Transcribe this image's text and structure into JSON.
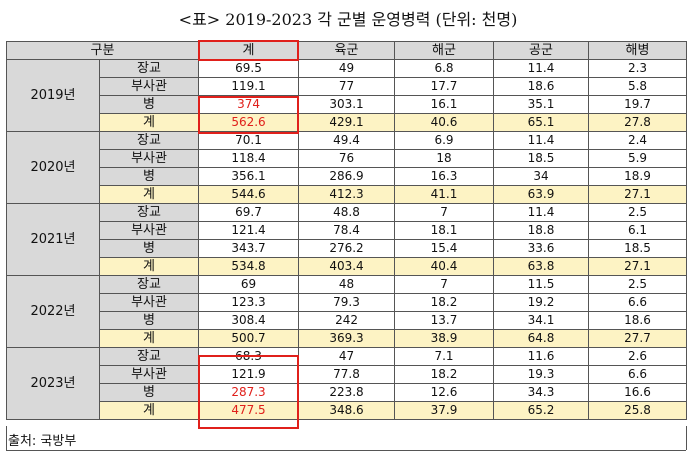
{
  "title": "<표> 2019-2023 각 군별 운영병력 (단위: 천명)",
  "headers": [
    "구분",
    "계",
    "육군",
    "해군",
    "공군",
    "해병"
  ],
  "groups": [
    {
      "year": "2019년",
      "rows": [
        {
          "rank": "장교",
          "values": [
            "69.5",
            "49",
            "6.8",
            "11.4",
            "2.3"
          ]
        },
        {
          "rank": "부사관",
          "values": [
            "119.1",
            "77",
            "17.7",
            "18.6",
            "5.8"
          ]
        },
        {
          "rank": "병",
          "values": [
            "374",
            "303.1",
            "16.1",
            "35.1",
            "19.7"
          ]
        },
        {
          "rank": "계",
          "values": [
            "562.6",
            "429.1",
            "40.6",
            "65.1",
            "27.8"
          ]
        }
      ]
    },
    {
      "year": "2020년",
      "rows": [
        {
          "rank": "장교",
          "values": [
            "70.1",
            "49.4",
            "6.9",
            "11.4",
            "2.4"
          ]
        },
        {
          "rank": "부사관",
          "values": [
            "118.4",
            "76",
            "18",
            "18.5",
            "5.9"
          ]
        },
        {
          "rank": "병",
          "values": [
            "356.1",
            "286.9",
            "16.3",
            "34",
            "18.9"
          ]
        },
        {
          "rank": "계",
          "values": [
            "544.6",
            "412.3",
            "41.1",
            "63.9",
            "27.1"
          ]
        }
      ]
    },
    {
      "year": "2021년",
      "rows": [
        {
          "rank": "장교",
          "values": [
            "69.7",
            "48.8",
            "7",
            "11.4",
            "2.5"
          ]
        },
        {
          "rank": "부사관",
          "values": [
            "121.4",
            "78.4",
            "18.1",
            "18.8",
            "6.1"
          ]
        },
        {
          "rank": "병",
          "values": [
            "343.7",
            "276.2",
            "15.4",
            "33.6",
            "18.5"
          ]
        },
        {
          "rank": "계",
          "values": [
            "534.8",
            "403.4",
            "40.4",
            "63.8",
            "27.1"
          ]
        }
      ]
    },
    {
      "year": "2022년",
      "rows": [
        {
          "rank": "장교",
          "values": [
            "69",
            "48",
            "7",
            "11.5",
            "2.5"
          ]
        },
        {
          "rank": "부사관",
          "values": [
            "123.3",
            "79.3",
            "18.2",
            "19.2",
            "6.6"
          ]
        },
        {
          "rank": "병",
          "values": [
            "308.4",
            "242",
            "13.7",
            "34.1",
            "18.6"
          ]
        },
        {
          "rank": "계",
          "values": [
            "500.7",
            "369.3",
            "38.9",
            "64.8",
            "27.7"
          ]
        }
      ]
    },
    {
      "year": "2023년",
      "rows": [
        {
          "rank": "장교",
          "values": [
            "68.3",
            "47",
            "7.1",
            "11.6",
            "2.6"
          ]
        },
        {
          "rank": "부사관",
          "values": [
            "121.9",
            "77.8",
            "18.2",
            "19.3",
            "6.6"
          ]
        },
        {
          "rank": "병",
          "values": [
            "287.3",
            "223.8",
            "12.6",
            "34.3",
            "16.6"
          ]
        },
        {
          "rank": "계",
          "values": [
            "477.5",
            "348.6",
            "37.9",
            "65.2",
            "25.8"
          ]
        }
      ]
    }
  ],
  "highlight_color": "#e0201b",
  "total_row_color": "#fdf3c4",
  "header_color": "#d9d9d9",
  "source": "출처: 국방부"
}
